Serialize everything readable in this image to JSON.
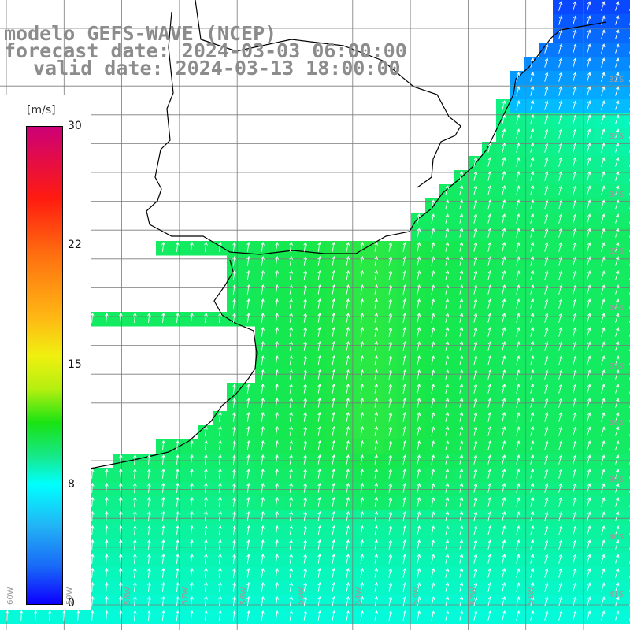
{
  "title": {
    "model": "modelo GEFS-WAVE (NCEP)",
    "forecast": "forecast date: 2024-03-03 06:00:00",
    "valid": "valid date: 2024-03-13 18:00:00"
  },
  "colorbar": {
    "unit": "[m/s]",
    "ticks": [
      "30",
      "22",
      "15",
      "8",
      "0"
    ],
    "max": 30,
    "min": 0,
    "colors": {
      "0": "#0d00ff",
      "8": "#00ffff",
      "12": "#16e84a",
      "15": "#f0f010",
      "22": "#ff7010",
      "30": "#cc0077"
    }
  },
  "map": {
    "lat_labels": [
      "32S",
      "33S",
      "34S",
      "35S",
      "36S",
      "37S",
      "38S",
      "39S",
      "40S",
      "41S"
    ],
    "lon_labels": [
      "60W",
      "59W",
      "58W",
      "57W",
      "56W",
      "55W",
      "54W",
      "53W",
      "52W",
      "51W"
    ],
    "land_color": "#ffffff",
    "grid_color": "#7a7a7a",
    "coast_color": "#000000",
    "arrow_color": "#ffffff",
    "field": "wind speed",
    "prevailing_direction": "south to north"
  }
}
